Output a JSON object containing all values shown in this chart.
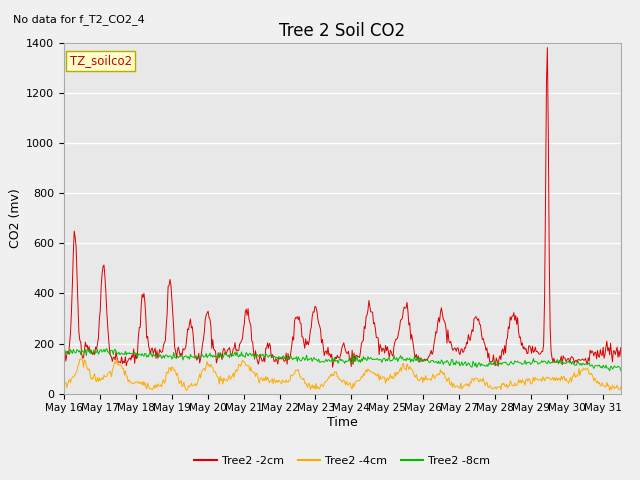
{
  "title": "Tree 2 Soil CO2",
  "subtitle": "No data for f_T2_CO2_4",
  "ylabel": "CO2 (mv)",
  "xlabel": "Time",
  "ylim": [
    0,
    1400
  ],
  "xlim": [
    0,
    15.5
  ],
  "yticks": [
    0,
    200,
    400,
    600,
    800,
    1000,
    1200,
    1400
  ],
  "xtick_labels": [
    "May 16",
    "May 17",
    "May 18",
    "May 19",
    "May 20",
    "May 21",
    "May 22",
    "May 23",
    "May 24",
    "May 25",
    "May 26",
    "May 27",
    "May 28",
    "May 29",
    "May 30",
    "May 31"
  ],
  "legend_label": "TZ_soilco2",
  "series_labels": [
    "Tree2 -2cm",
    "Tree2 -4cm",
    "Tree2 -8cm"
  ],
  "series_colors": [
    "#dd0000",
    "#ffaa00",
    "#00bb00"
  ],
  "fig_bg_color": "#f0f0f0",
  "plot_bg_color": "#e8e8e8",
  "grid_color": "#ffffff",
  "title_fontsize": 12,
  "label_fontsize": 9,
  "tick_fontsize": 8,
  "annot_fontsize": 8,
  "legend_fontsize": 8
}
